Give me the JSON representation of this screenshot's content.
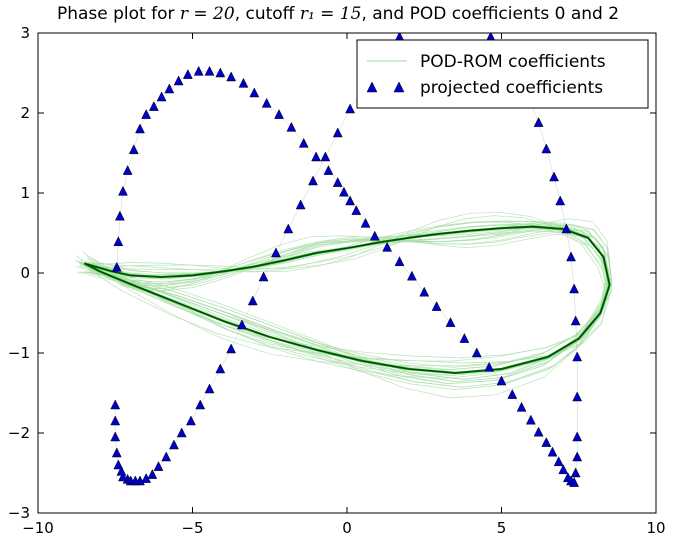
{
  "chart_data": {
    "type": "line",
    "title": {
      "prefix": "Phase plot for ",
      "r_symbol": "r = 20",
      "mid": ", cutoff ",
      "r1_symbol": "r₁ = 15",
      "suffix": ", and POD coefficients 0 and 2"
    },
    "xlabel": "",
    "ylabel": "",
    "xlim": [
      -10,
      10
    ],
    "ylim": [
      -3,
      3
    ],
    "xticks": [
      "−10",
      "−5",
      "0",
      "5",
      "10"
    ],
    "yticks": [
      "3",
      "2",
      "1",
      "0",
      "−1",
      "−2",
      "−3"
    ],
    "grid": false,
    "legend": {
      "placement": "top-right",
      "entries": [
        "POD-ROM coefficients",
        "projected coefficients"
      ]
    },
    "colors": {
      "pod_rom": "#008000",
      "pod_rom_faint": "#a8dca8",
      "projected": "#0000cc",
      "mean_line": "#000000"
    },
    "series": [
      {
        "name": "POD-ROM coefficients",
        "style": "thin green lines (many trajectories)",
        "x": [
          -8.5,
          -7.6,
          -7.0,
          -6.0,
          -5.0,
          -4.0,
          -3.0,
          -2.0,
          -1.0,
          0.0,
          1.0,
          2.0,
          3.0,
          4.0,
          5.0,
          6.0,
          7.0,
          7.8,
          8.3,
          8.5,
          8.2,
          7.5,
          6.5,
          5.0,
          3.5,
          2.0,
          0.5,
          -1.0,
          -2.5,
          -4.0,
          -5.5,
          -7.0,
          -8.0,
          -8.5
        ],
        "y": [
          0.12,
          0.02,
          -0.03,
          -0.05,
          -0.03,
          0.02,
          0.08,
          0.16,
          0.25,
          0.31,
          0.38,
          0.44,
          0.49,
          0.53,
          0.56,
          0.58,
          0.55,
          0.44,
          0.2,
          -0.15,
          -0.5,
          -0.82,
          -1.05,
          -1.2,
          -1.25,
          -1.2,
          -1.1,
          -0.96,
          -0.8,
          -0.6,
          -0.37,
          -0.14,
          0.02,
          0.12
        ]
      },
      {
        "name": "projected coefficients",
        "style": "blue triangle markers",
        "x": [
          -7.45,
          -7.4,
          -7.35,
          -7.25,
          -7.1,
          -6.9,
          -6.7,
          -6.5,
          -6.25,
          -6.0,
          -5.75,
          -5.45,
          -5.15,
          -4.8,
          -4.45,
          -4.1,
          -3.75,
          -3.35,
          -3.0,
          -2.6,
          -2.2,
          -1.8,
          -1.4,
          -1.0,
          -0.6,
          -0.3,
          -0.1,
          0.1,
          0.3,
          0.6,
          0.9,
          1.3,
          1.7,
          2.1,
          2.5,
          2.9,
          3.35,
          3.8,
          4.2,
          4.6,
          5.0,
          5.35,
          5.65,
          5.95,
          6.2,
          6.45,
          6.65,
          6.85,
          7.0,
          7.15,
          7.25,
          7.35,
          7.4,
          7.45,
          7.45,
          7.45,
          7.45,
          7.4,
          7.35,
          7.25,
          7.1,
          6.9,
          6.7,
          6.45,
          6.2,
          5.95,
          5.7,
          5.45,
          5.2,
          4.95,
          4.65,
          4.3,
          3.95,
          3.6,
          3.25,
          2.85,
          2.45,
          2.1,
          1.7,
          1.3,
          0.9,
          0.5,
          0.1,
          -0.3,
          -0.7,
          -1.1,
          -1.5,
          -1.9,
          -2.3,
          -2.7,
          -3.05,
          -3.4,
          -3.75,
          -4.1,
          -4.45,
          -4.75,
          -5.05,
          -5.35,
          -5.6,
          -5.85,
          -6.1,
          -6.3,
          -6.5,
          -6.7,
          -6.85,
          -7.0,
          -7.1,
          -7.25,
          -7.3,
          -7.4,
          -7.45,
          -7.5,
          -7.5,
          -7.5
        ],
        "y": [
          0.07,
          0.39,
          0.71,
          1.02,
          1.28,
          1.54,
          1.8,
          1.98,
          2.08,
          2.2,
          2.3,
          2.4,
          2.48,
          2.52,
          2.52,
          2.5,
          2.45,
          2.37,
          2.25,
          2.12,
          1.98,
          1.82,
          1.62,
          1.45,
          1.28,
          1.13,
          1.01,
          0.9,
          0.78,
          0.62,
          0.46,
          0.32,
          0.14,
          -0.04,
          -0.24,
          -0.42,
          -0.62,
          -0.82,
          -1.0,
          -1.18,
          -1.35,
          -1.52,
          -1.68,
          -1.84,
          -1.99,
          -2.12,
          -2.24,
          -2.36,
          -2.46,
          -2.56,
          -2.6,
          -2.62,
          -2.5,
          -2.3,
          -2.05,
          -1.55,
          -1.05,
          -0.6,
          -0.2,
          0.2,
          0.55,
          0.9,
          1.2,
          1.55,
          1.88,
          2.12,
          2.32,
          2.5,
          2.65,
          2.8,
          2.95,
          3.05,
          3.15,
          3.2,
          3.24,
          3.25,
          3.2,
          3.1,
          2.95,
          2.75,
          2.55,
          2.3,
          2.05,
          1.75,
          1.45,
          1.15,
          0.85,
          0.55,
          0.25,
          -0.05,
          -0.35,
          -0.65,
          -0.95,
          -1.2,
          -1.45,
          -1.65,
          -1.85,
          -2.0,
          -2.15,
          -2.3,
          -2.42,
          -2.52,
          -2.57,
          -2.6,
          -2.6,
          -2.6,
          -2.58,
          -2.55,
          -2.48,
          -2.4,
          -2.25,
          -2.05,
          -1.85,
          -1.65
        ]
      }
    ]
  }
}
